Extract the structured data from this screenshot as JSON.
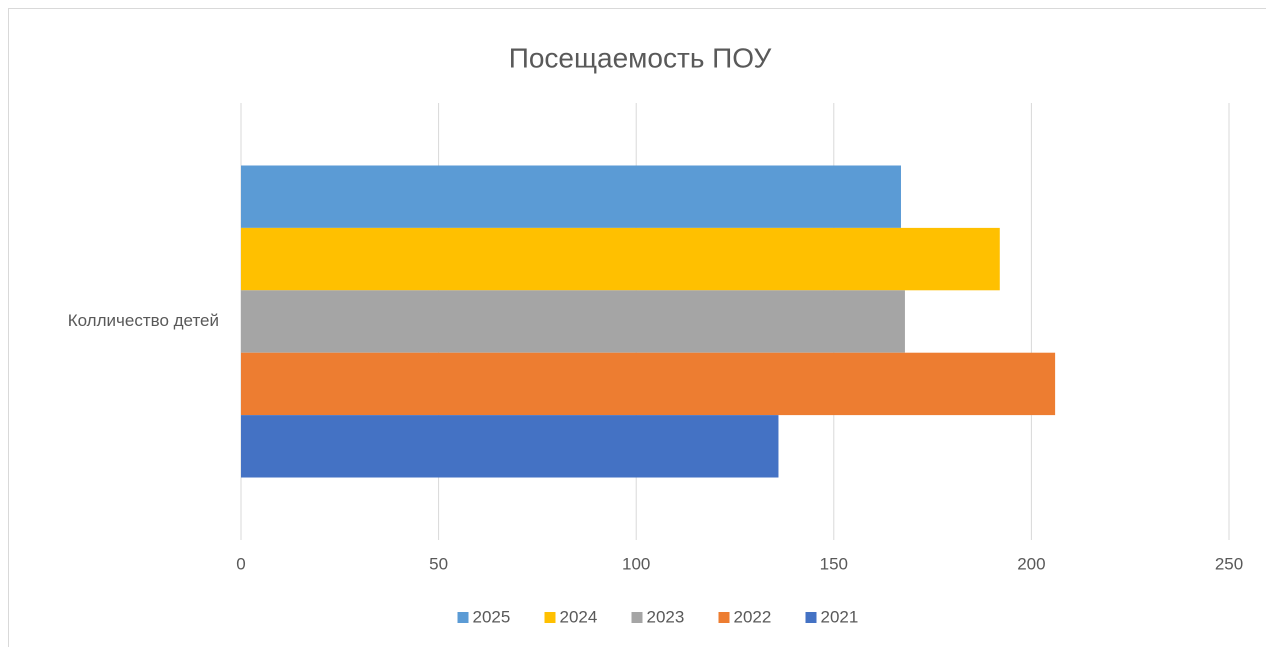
{
  "chart_data": {
    "type": "barh",
    "title": "Посещаемость ПОУ",
    "categories": [
      "Колличество детей"
    ],
    "series": [
      {
        "name": "2025",
        "color": "#5b9bd5",
        "values": [
          167
        ]
      },
      {
        "name": "2024",
        "color": "#ffc000",
        "values": [
          192
        ]
      },
      {
        "name": "2023",
        "color": "#a5a5a5",
        "values": [
          168
        ]
      },
      {
        "name": "2022",
        "color": "#ed7d31",
        "values": [
          206
        ]
      },
      {
        "name": "2021",
        "color": "#4472c4",
        "values": [
          136
        ]
      }
    ],
    "xlim": [
      0,
      250
    ],
    "xticks": [
      0,
      50,
      100,
      150,
      200,
      250
    ],
    "grid": true,
    "legend": "bottom"
  }
}
